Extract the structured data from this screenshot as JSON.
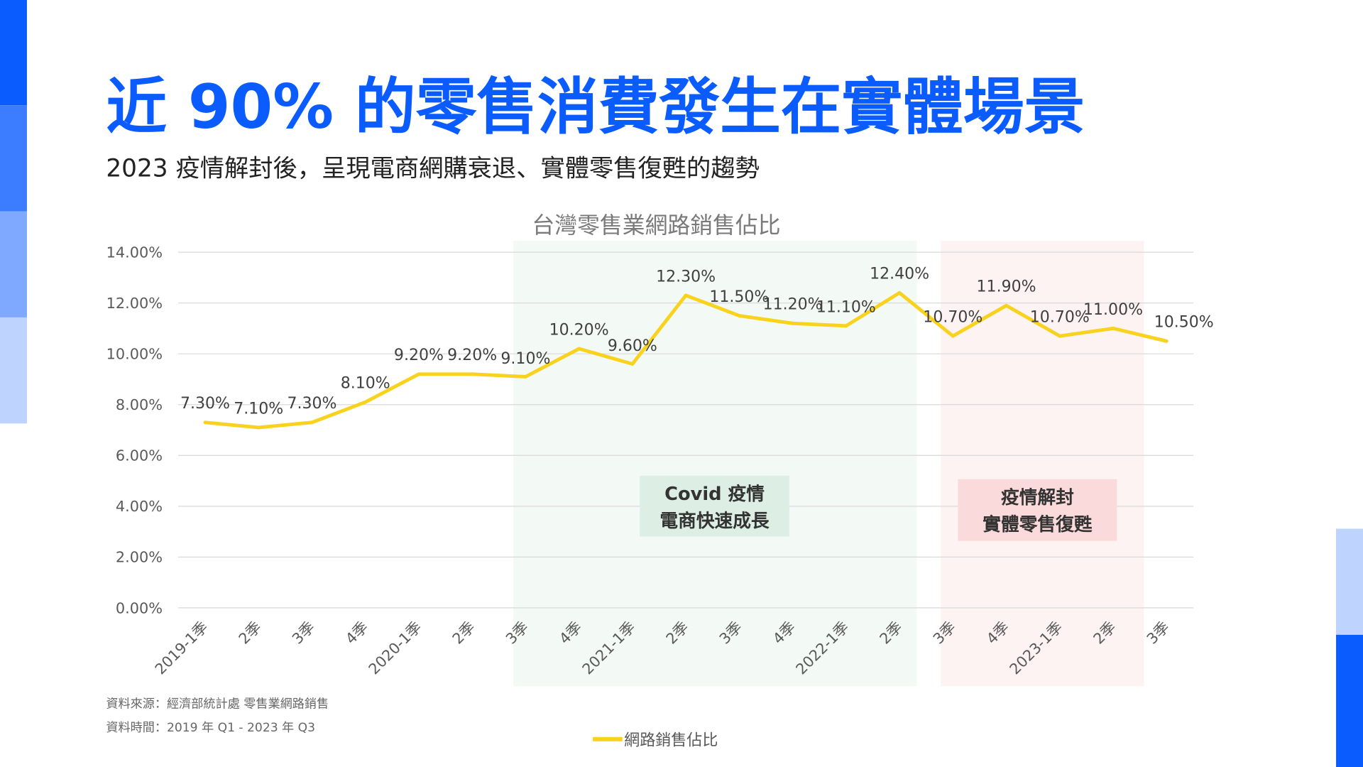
{
  "slide": {
    "title": "近 90% 的零售消費發生在實體場景",
    "subtitle": "2023 疫情解封後，呈現電商網購衰退、實體零售復甦的趨勢",
    "title_color": "#0A5CFF",
    "source": "資料來源：經濟部統計處 零售業網路銷售",
    "period": "資料時間：2019 年 Q1 - 2023 年 Q3"
  },
  "chart_data": {
    "type": "line",
    "title": "台灣零售業網路銷售佔比",
    "categories": [
      "2019-1季",
      "2季",
      "3季",
      "4季",
      "2020-1季",
      "2季",
      "3季",
      "4季",
      "2021-1季",
      "2季",
      "3季",
      "4季",
      "2022-1季",
      "2季",
      "3季",
      "4季",
      "2023-1季",
      "2季",
      "3季"
    ],
    "series": [
      {
        "name": "網路銷售佔比",
        "color": "#F9D21E",
        "values": [
          7.3,
          7.1,
          7.3,
          8.1,
          9.2,
          9.2,
          9.1,
          10.2,
          9.6,
          12.3,
          11.5,
          11.2,
          11.1,
          12.4,
          10.7,
          11.9,
          10.7,
          11.0,
          10.5
        ],
        "labels": [
          "7.30%",
          "7.10%",
          "7.30%",
          "8.10%",
          "9.20%",
          "9.20%",
          "9.10%",
          "10.20%",
          "9.60%",
          "12.30%",
          "11.50%",
          "11.20%",
          "11.10%",
          "12.40%",
          "10.70%",
          "11.90%",
          "10.70%",
          "11.00%",
          "10.50%"
        ]
      }
    ],
    "ylim": [
      0,
      14
    ],
    "yticks": [
      "0.00%",
      "2.00%",
      "4.00%",
      "6.00%",
      "8.00%",
      "10.00%",
      "12.00%",
      "14.00%"
    ],
    "grid": true,
    "legend": "bottom",
    "annotations": [
      {
        "text_lines": [
          "Covid 疫情",
          "電商快速成長"
        ],
        "span": [
          "3季 2020",
          "2季 2022"
        ],
        "shade_color": "#F3F9F5",
        "box_color": "#DDEEE5"
      },
      {
        "text_lines": [
          "疫情解封",
          "實體零售復甦"
        ],
        "span": [
          "3季 2022",
          "2季 2023"
        ],
        "shade_color": "#FDF3F3",
        "box_color": "#FADADA"
      }
    ]
  }
}
